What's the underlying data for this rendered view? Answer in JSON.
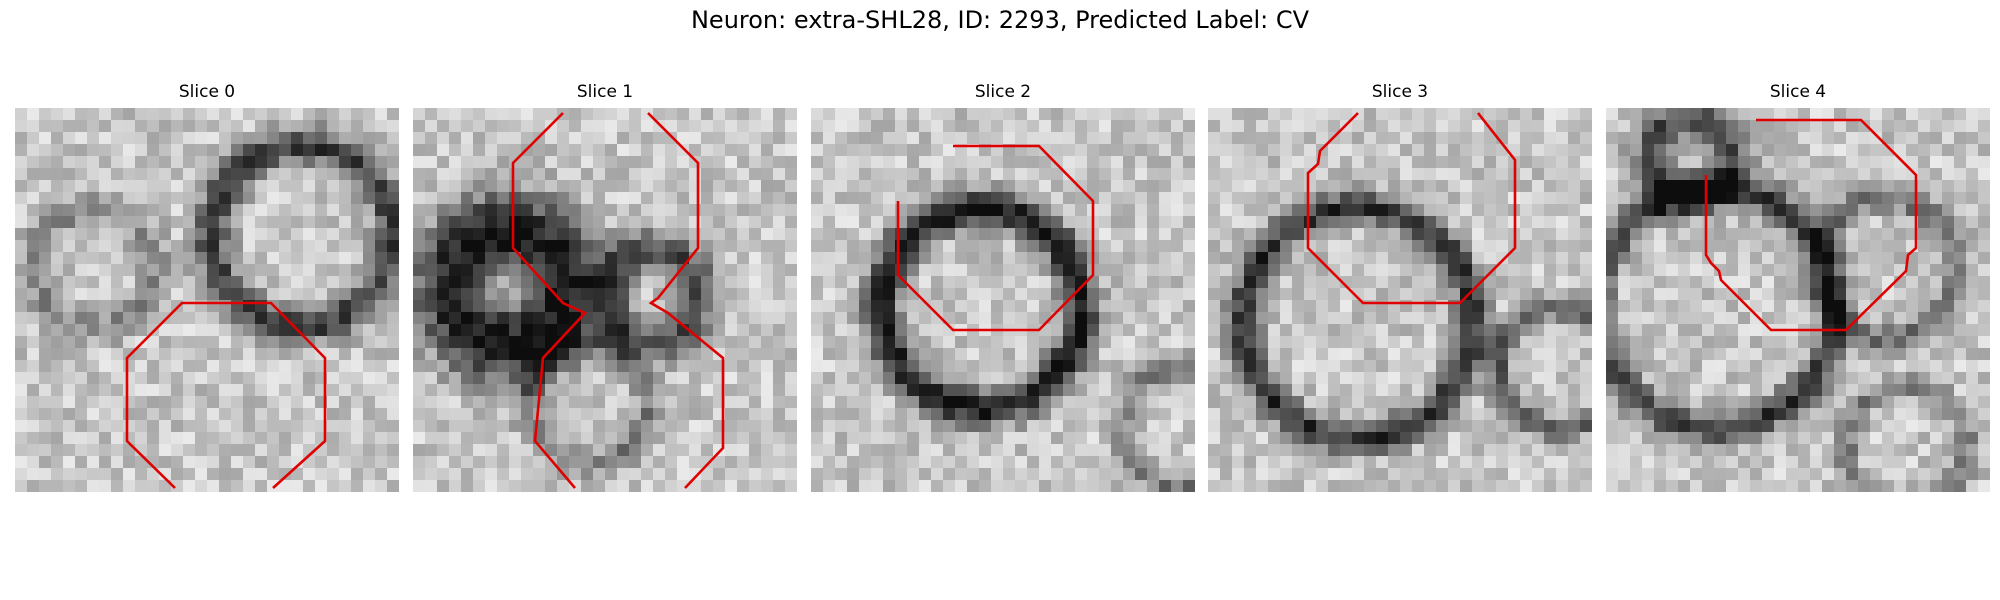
{
  "figure": {
    "title": "Neuron: extra-SHL28, ID: 2293, Predicted Label: CV"
  },
  "colors": {
    "contour": "#e00000",
    "background": "#ffffff"
  },
  "slices": [
    {
      "title": "Slice 0"
    },
    {
      "title": "Slice 1"
    },
    {
      "title": "Slice 2"
    },
    {
      "title": "Slice 3"
    },
    {
      "title": "Slice 4"
    }
  ]
}
